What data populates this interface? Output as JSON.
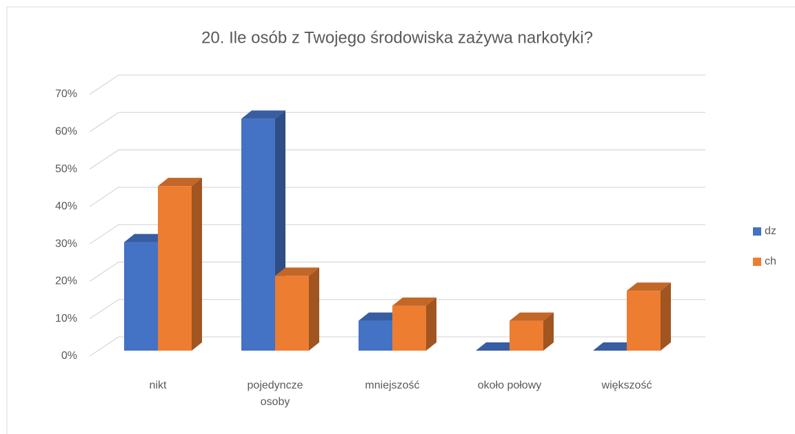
{
  "chart_data": {
    "type": "bar3d",
    "title": "20. Ile osób z Twojego środowiska zażywa narkotyki?",
    "categories": [
      "nikt",
      "pojedyncze osoby",
      "mniejszość",
      "około połowy",
      "większość"
    ],
    "series": [
      {
        "name": "dz",
        "color": "#4472c4",
        "values": [
          29,
          62,
          8,
          0,
          0
        ]
      },
      {
        "name": "ch",
        "color": "#ed7d31",
        "values": [
          44,
          20,
          12,
          8,
          16
        ]
      }
    ],
    "ylim": [
      0,
      70
    ],
    "yticks": [
      {
        "value": 0,
        "label": "0%"
      },
      {
        "value": 10,
        "label": "10%"
      },
      {
        "value": 20,
        "label": "20%"
      },
      {
        "value": 30,
        "label": "30%"
      },
      {
        "value": 40,
        "label": "40%"
      },
      {
        "value": 50,
        "label": "50%"
      },
      {
        "value": 60,
        "label": "60%"
      },
      {
        "value": 70,
        "label": "70%"
      }
    ],
    "grid": true,
    "legend": "right"
  }
}
